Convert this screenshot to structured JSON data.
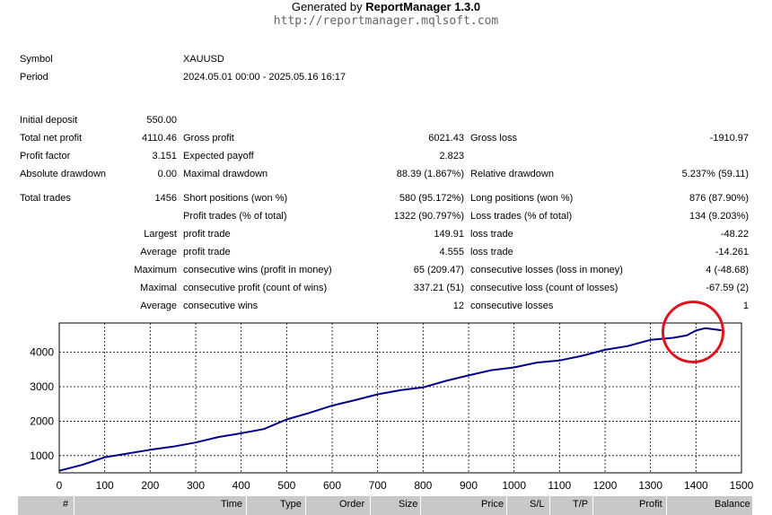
{
  "header": {
    "generated_prefix": "Generated by ",
    "app_name": "ReportManager 1.3.0",
    "url": "http://reportmanager.mqlsoft.com"
  },
  "summary": {
    "symbol_label": "Symbol",
    "symbol_value": "XAUUSD",
    "period_label": "Period",
    "period_value": "2024.05.01 00:00 - 2025.05.16 16:17",
    "initial_deposit_label": "Initial deposit",
    "initial_deposit_value": "550.00",
    "total_net_profit_label": "Total net profit",
    "total_net_profit_value": "4110.46",
    "gross_profit_label": "Gross profit",
    "gross_profit_value": "6021.43",
    "gross_loss_label": "Gross loss",
    "gross_loss_value": "-1910.97",
    "profit_factor_label": "Profit factor",
    "profit_factor_value": "3.151",
    "expected_payoff_label": "Expected payoff",
    "expected_payoff_value": "2.823",
    "absolute_drawdown_label": "Absolute drawdown",
    "absolute_drawdown_value": "0.00",
    "maximal_drawdown_label": "Maximal drawdown",
    "maximal_drawdown_value": "88.39 (1.867%)",
    "relative_drawdown_label": "Relative drawdown",
    "relative_drawdown_value": "5.237% (59.11)",
    "total_trades_label": "Total trades",
    "total_trades_value": "1456",
    "short_positions_label": "Short positions (won %)",
    "short_positions_value": "580 (95.172%)",
    "long_positions_label": "Long positions (won %)",
    "long_positions_value": "876 (87.90%)",
    "profit_trades_label": "Profit trades (% of total)",
    "profit_trades_value": "1322 (90.797%)",
    "loss_trades_label": "Loss trades (% of total)",
    "loss_trades_value": "134 (9.203%)",
    "largest_label": "Largest",
    "largest_profit_label": "profit trade",
    "largest_profit_value": "149.91",
    "largest_loss_label": "loss trade",
    "largest_loss_value": "-48.22",
    "average_label": "Average",
    "average_profit_label": "profit trade",
    "average_profit_value": "4.555",
    "average_loss_label": "loss trade",
    "average_loss_value": "-14.261",
    "maximum_label": "Maximum",
    "max_cons_wins_label": "consecutive wins (profit in money)",
    "max_cons_wins_value": "65 (209.47)",
    "max_cons_losses_label": "consecutive losses (loss in money)",
    "max_cons_losses_value": "4 (-48.68)",
    "maximal_label": "Maximal",
    "maximal_cons_profit_label": "consecutive profit (count of wins)",
    "maximal_cons_profit_value": "337.21 (51)",
    "maximal_cons_loss_label": "consecutive loss (count of losses)",
    "maximal_cons_loss_value": "-67.59 (2)",
    "average2_label": "Average",
    "avg_cons_wins_label": "consecutive wins",
    "avg_cons_wins_value": "12",
    "avg_cons_losses_label": "consecutive losses",
    "avg_cons_losses_value": "1"
  },
  "chart_data": {
    "type": "line",
    "title": "",
    "xlabel": "",
    "ylabel": "",
    "xlim": [
      0,
      1500
    ],
    "ylim": [
      500,
      4850
    ],
    "xticks": [
      0,
      100,
      200,
      300,
      400,
      500,
      600,
      700,
      800,
      900,
      1000,
      1100,
      1200,
      1300,
      1400,
      1500
    ],
    "yticks": [
      1000,
      2000,
      3000,
      4000
    ],
    "grid": true,
    "line_color": "#00008b",
    "series": [
      {
        "name": "",
        "x": [
          0,
          50,
          100,
          150,
          200,
          250,
          300,
          350,
          400,
          450,
          500,
          550,
          600,
          650,
          700,
          750,
          800,
          850,
          900,
          950,
          1000,
          1050,
          1100,
          1150,
          1200,
          1250,
          1300,
          1350,
          1380,
          1400,
          1420,
          1456
        ],
        "y": [
          560,
          730,
          950,
          1060,
          1170,
          1260,
          1380,
          1540,
          1650,
          1770,
          2050,
          2240,
          2450,
          2610,
          2780,
          2900,
          2980,
          3170,
          3330,
          3480,
          3560,
          3700,
          3760,
          3900,
          4070,
          4180,
          4360,
          4420,
          4490,
          4630,
          4700,
          4640
        ]
      }
    ]
  },
  "table_header": {
    "col_num": "#",
    "col_time": "Time",
    "col_type": "Type",
    "col_order": "Order",
    "col_size": "Size",
    "col_price": "Price",
    "col_sl": "S/L",
    "col_tp": "T/P",
    "col_profit": "Profit",
    "col_balance": "Balance"
  },
  "annotation": {
    "color": "#e0141c"
  }
}
